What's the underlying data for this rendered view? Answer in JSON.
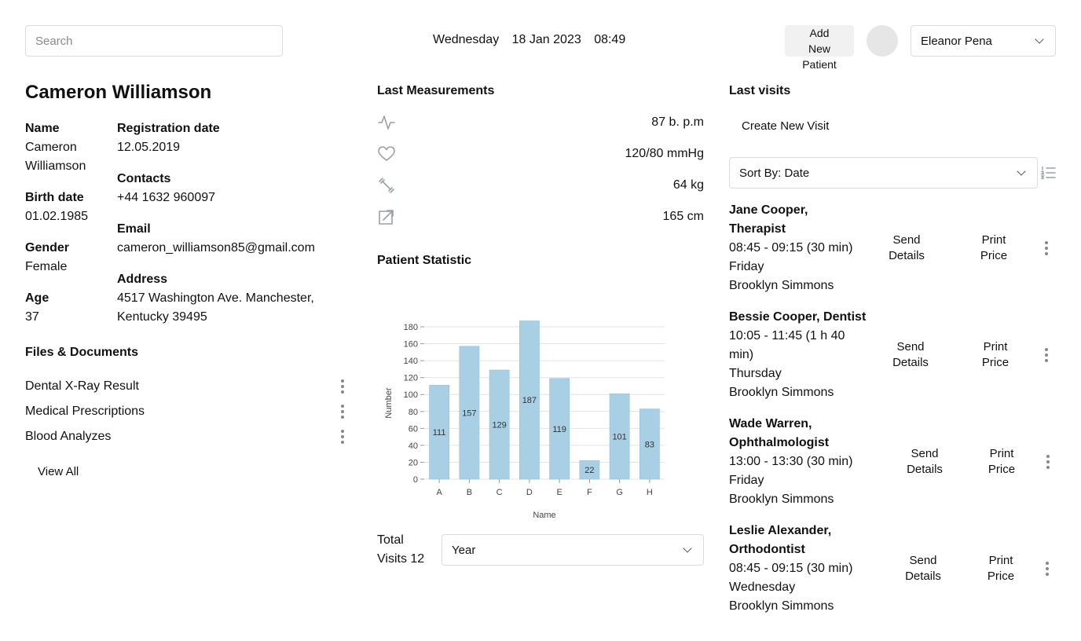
{
  "header": {
    "search_placeholder": "Search",
    "day": "Wednesday",
    "date": "18 Jan 2023",
    "time": "08:49",
    "add_patient_lines": [
      "Add",
      "New",
      "Patient"
    ],
    "user_name": "Eleanor Pena"
  },
  "patient": {
    "full_name": "Cameron Williamson",
    "name_label": "Name",
    "name_value_lines": [
      "Cameron",
      "Williamson"
    ],
    "birth_label": "Birth date",
    "birth_value": "01.02.1985",
    "gender_label": "Gender",
    "gender_value": "Female",
    "age_label": "Age",
    "age_value": "37",
    "registration_label": "Registration date",
    "registration_value": "12.05.2019",
    "contacts_label": "Contacts",
    "contacts_value": "+44 1632 960097",
    "email_label": "Email",
    "email_value": "cameron_williamson85@gmail.com",
    "address_label": "Address",
    "address_lines": [
      "4517 Washington Ave. Manchester,",
      "Kentucky 39495"
    ]
  },
  "files": {
    "title": "Files & Documents",
    "items": [
      "Dental X-Ray Result",
      "Medical Prescriptions",
      "Blood Analyzes"
    ],
    "view_all": "View All"
  },
  "measurements": {
    "title": "Last Measurements",
    "items": [
      {
        "icon": "heart-rate-icon",
        "value": "87 b. p.m"
      },
      {
        "icon": "heart-icon",
        "value": "120/80 mmHg"
      },
      {
        "icon": "dumbbell-icon",
        "value": "64 kg"
      },
      {
        "icon": "height-icon",
        "value": "165 cm"
      }
    ]
  },
  "statistic": {
    "title": "Patient Statistic",
    "total_label_lines": [
      "Total",
      "Visits 12"
    ],
    "period_value": "Year"
  },
  "chart_data": {
    "type": "bar",
    "categories": [
      "A",
      "B",
      "C",
      "D",
      "E",
      "F",
      "G",
      "H"
    ],
    "values": [
      111,
      157,
      129,
      187,
      119,
      22,
      101,
      83
    ],
    "title": "",
    "xlabel": "Name",
    "ylabel": "Number",
    "ylim": [
      0,
      180
    ],
    "yticks": [
      0,
      20,
      40,
      60,
      80,
      100,
      120,
      140,
      160,
      180
    ],
    "grid": true,
    "bar_color": "#a8cfe4",
    "data_labels": true
  },
  "visits": {
    "title": "Last visits",
    "create_label": "Create New Visit",
    "sort_value": "Sort By: Date",
    "send_lines": [
      "Send",
      "Details"
    ],
    "print_lines": [
      "Print",
      "Price"
    ],
    "items": [
      {
        "doctor_lines": [
          "Jane Cooper,",
          "Therapist"
        ],
        "time_lines": [
          "08:45 - 09:15 (30 min)"
        ],
        "day": "Friday",
        "patient": "Brooklyn Simmons"
      },
      {
        "doctor_lines": [
          "Bessie Cooper, Dentist"
        ],
        "time_lines": [
          "10:05 - 11:45 (1 h 40",
          "min)"
        ],
        "day": "Thursday",
        "patient": "Brooklyn Simmons"
      },
      {
        "doctor_lines": [
          "Wade Warren,",
          "Ophthalmologist"
        ],
        "time_lines": [
          "13:00 - 13:30 (30 min)"
        ],
        "day": "Friday",
        "patient": "Brooklyn Simmons"
      },
      {
        "doctor_lines": [
          "Leslie Alexander,",
          "Orthodontist"
        ],
        "time_lines": [
          "08:45 - 09:15 (30 min)"
        ],
        "day": "Wednesday",
        "patient": "Brooklyn Simmons"
      }
    ]
  }
}
